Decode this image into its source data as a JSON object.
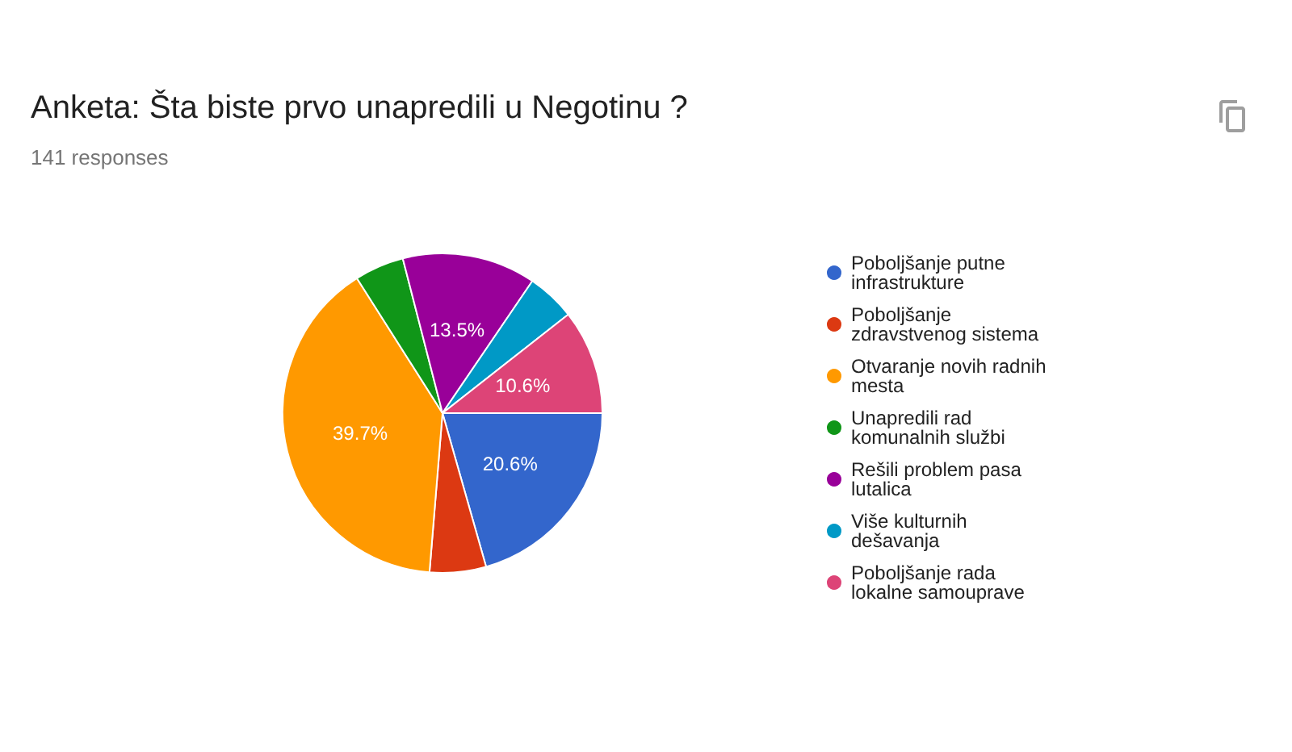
{
  "chart_data": {
    "type": "pie",
    "title": "Anketa: Šta biste prvo unapredili u Negotinu ?",
    "subtitle": "141 responses",
    "categories": [
      "Poboljšanje putne infrastrukture",
      "Poboljšanje zdravstvenog sistema",
      "Otvaranje novih radnih mesta",
      "Unapredili rad komunalnih službi",
      "Rešili problem pasa lutalica",
      "Više kulturnih dešavanja",
      "Poboljšanje rada lokalne samouprave"
    ],
    "values": [
      20.6,
      5.7,
      39.7,
      5.0,
      13.5,
      4.9,
      10.6
    ],
    "colors": [
      "#3366cc",
      "#dc3912",
      "#ff9900",
      "#109618",
      "#990099",
      "#0099c6",
      "#dd4477"
    ],
    "value_labels": [
      "20.6%",
      null,
      "39.7%",
      null,
      "13.5%",
      null,
      "10.6%"
    ],
    "legend": "right"
  }
}
